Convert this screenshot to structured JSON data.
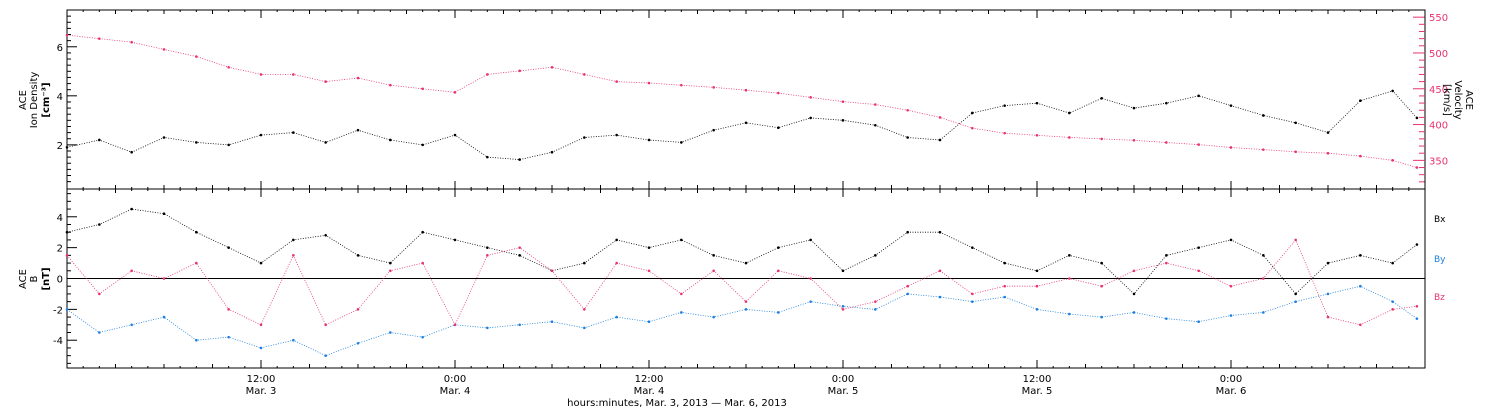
{
  "chart_data": [
    {
      "type": "scatter",
      "panel": "top",
      "y_label_lines": [
        "ACE",
        "Ion Density",
        "[cm⁻³]"
      ],
      "y2_label_lines": [
        "ACE",
        "Velocity",
        "[km/s]"
      ],
      "ylim": [
        0.2,
        7.5
      ],
      "y2lim": [
        310,
        560
      ],
      "yticks": [
        2,
        4,
        6
      ],
      "y2ticks": [
        350,
        400,
        450,
        500,
        550
      ],
      "x_range_hours": [
        0,
        84
      ],
      "series": [
        {
          "name": "Ion Density",
          "axis": "left",
          "color": "#000000",
          "x": [
            0,
            2,
            4,
            6,
            8,
            10,
            12,
            14,
            16,
            18,
            20,
            22,
            24,
            26,
            28,
            30,
            32,
            34,
            36,
            38,
            40,
            42,
            44,
            46,
            48,
            50,
            52,
            54,
            56,
            58,
            60,
            62,
            64,
            66,
            68,
            70,
            72,
            74,
            76,
            78,
            80,
            82,
            83.5
          ],
          "y": [
            1.9,
            2.2,
            1.7,
            2.3,
            2.1,
            2.0,
            2.4,
            2.5,
            2.1,
            2.6,
            2.2,
            2.0,
            2.4,
            1.5,
            1.4,
            1.7,
            2.3,
            2.4,
            2.2,
            2.1,
            2.6,
            2.9,
            2.7,
            3.1,
            3.0,
            2.8,
            2.3,
            2.2,
            3.3,
            3.6,
            3.7,
            3.3,
            3.9,
            3.5,
            3.7,
            4.0,
            3.6,
            3.2,
            2.9,
            2.5,
            3.8,
            4.2,
            3.1
          ]
        },
        {
          "name": "Velocity",
          "axis": "right",
          "color": "#e8336e",
          "x": [
            0,
            2,
            4,
            6,
            8,
            10,
            12,
            14,
            16,
            18,
            20,
            22,
            24,
            26,
            28,
            30,
            32,
            34,
            36,
            38,
            40,
            42,
            44,
            46,
            48,
            50,
            52,
            54,
            56,
            58,
            60,
            62,
            64,
            66,
            68,
            70,
            72,
            74,
            76,
            78,
            80,
            82,
            83.5
          ],
          "y": [
            525,
            520,
            515,
            505,
            495,
            480,
            470,
            470,
            460,
            465,
            455,
            450,
            445,
            470,
            475,
            480,
            470,
            460,
            458,
            455,
            452,
            448,
            444,
            438,
            432,
            428,
            420,
            410,
            395,
            388,
            385,
            382,
            380,
            378,
            375,
            372,
            368,
            365,
            362,
            360,
            356,
            350,
            340
          ]
        }
      ]
    },
    {
      "type": "scatter",
      "panel": "bottom",
      "y_label_lines": [
        "ACE",
        "B",
        "[nT]"
      ],
      "ylim": [
        -5.8,
        5.8
      ],
      "yticks": [
        -4,
        -2,
        0,
        2,
        4
      ],
      "x_range_hours": [
        0,
        84
      ],
      "legend_position": "right",
      "series": [
        {
          "name": "Bx",
          "color": "#000000",
          "x": [
            0,
            2,
            4,
            6,
            8,
            10,
            12,
            14,
            16,
            18,
            20,
            22,
            24,
            26,
            28,
            30,
            32,
            34,
            36,
            38,
            40,
            42,
            44,
            46,
            48,
            50,
            52,
            54,
            56,
            58,
            60,
            62,
            64,
            66,
            68,
            70,
            72,
            74,
            76,
            78,
            80,
            82,
            83.5
          ],
          "y": [
            3.0,
            3.5,
            4.5,
            4.2,
            3.0,
            2.0,
            1.0,
            2.5,
            2.8,
            1.5,
            1.0,
            3.0,
            2.5,
            2.0,
            1.5,
            0.5,
            1.0,
            2.5,
            2.0,
            2.5,
            1.5,
            1.0,
            2.0,
            2.5,
            0.5,
            1.5,
            3.0,
            3.0,
            2.0,
            1.0,
            0.5,
            1.5,
            1.0,
            -1.0,
            1.5,
            2.0,
            2.5,
            1.5,
            -1.0,
            1.0,
            1.5,
            1.0,
            2.2
          ]
        },
        {
          "name": "By",
          "color": "#1a7fe0",
          "x": [
            0,
            2,
            4,
            6,
            8,
            10,
            12,
            14,
            16,
            18,
            20,
            22,
            24,
            26,
            28,
            30,
            32,
            34,
            36,
            38,
            40,
            42,
            44,
            46,
            48,
            50,
            52,
            54,
            56,
            58,
            60,
            62,
            64,
            66,
            68,
            70,
            72,
            74,
            76,
            78,
            80,
            82,
            83.5
          ],
          "y": [
            -2.0,
            -3.5,
            -3.0,
            -2.5,
            -4.0,
            -3.8,
            -4.5,
            -4.0,
            -5.0,
            -4.2,
            -3.5,
            -3.8,
            -3.0,
            -3.2,
            -3.0,
            -2.8,
            -3.2,
            -2.5,
            -2.8,
            -2.2,
            -2.5,
            -2.0,
            -2.2,
            -1.5,
            -1.8,
            -2.0,
            -1.0,
            -1.2,
            -1.5,
            -1.2,
            -2.0,
            -2.3,
            -2.5,
            -2.2,
            -2.6,
            -2.8,
            -2.4,
            -2.2,
            -1.5,
            -1.0,
            -0.5,
            -1.5,
            -2.6
          ]
        },
        {
          "name": "Bz",
          "color": "#e8336e",
          "x": [
            0,
            2,
            4,
            6,
            8,
            10,
            12,
            14,
            16,
            18,
            20,
            22,
            24,
            26,
            28,
            30,
            32,
            34,
            36,
            38,
            40,
            42,
            44,
            46,
            48,
            50,
            52,
            54,
            56,
            58,
            60,
            62,
            64,
            66,
            68,
            70,
            72,
            74,
            76,
            78,
            80,
            82,
            83.5
          ],
          "y": [
            1.5,
            -1.0,
            0.5,
            0.0,
            1.0,
            -2.0,
            -3.0,
            1.5,
            -3.0,
            -2.0,
            0.5,
            1.0,
            -3.0,
            1.5,
            2.0,
            0.5,
            -2.0,
            1.0,
            0.5,
            -1.0,
            0.5,
            -1.5,
            0.5,
            0.0,
            -2.0,
            -1.5,
            -0.5,
            0.5,
            -1.0,
            -0.5,
            -0.5,
            0.0,
            -0.5,
            0.5,
            1.0,
            0.5,
            -0.5,
            0.0,
            2.5,
            -2.5,
            -3.0,
            -2.0,
            -1.8
          ]
        }
      ]
    }
  ],
  "x_axis": {
    "major_ticks": [
      {
        "hour": 12,
        "time": "12:00",
        "date": "Mar. 3"
      },
      {
        "hour": 24,
        "time": "0:00",
        "date": "Mar. 4"
      },
      {
        "hour": 36,
        "time": "12:00",
        "date": "Mar. 4"
      },
      {
        "hour": 48,
        "time": "0:00",
        "date": "Mar. 5"
      },
      {
        "hour": 60,
        "time": "12:00",
        "date": "Mar. 5"
      },
      {
        "hour": 72,
        "time": "0:00",
        "date": "Mar. 6"
      }
    ],
    "title": "hours:minutes, Mar.  3, 2013 — Mar.  6, 2013"
  },
  "colors": {
    "density": "#000000",
    "velocity": "#e8336e",
    "bx": "#000000",
    "by": "#1a7fe0",
    "bz": "#e8336e"
  }
}
